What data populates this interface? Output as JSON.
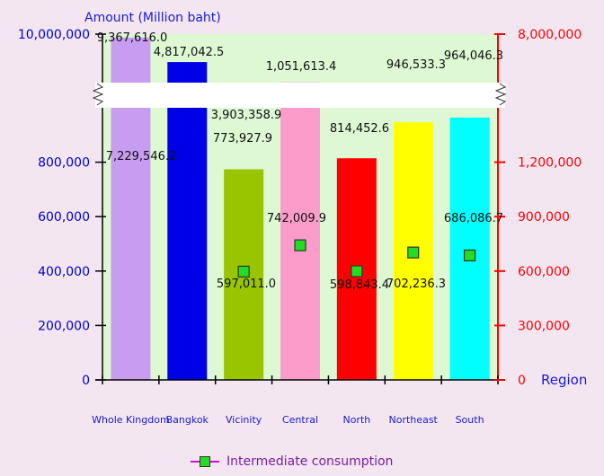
{
  "chart_data": {
    "type": "bar",
    "title": "",
    "left_axis_title": "Amount  (Million baht)",
    "right_axis_title": "Region",
    "categories": [
      "Whole Kingdom",
      "Bangkok",
      "Vicinity",
      "Central",
      "North",
      "Northeast",
      "South"
    ],
    "bar_colors": [
      "#c79cf1",
      "#0000e6",
      "#99c400",
      "#fb9ccb",
      "#ff0000",
      "#ffff00",
      "#00ffff"
    ],
    "bar_values": [
      9367616.0,
      4817042.5,
      773927.9,
      1051613.4,
      814452.6,
      946533.3,
      964046.3
    ],
    "bar_value_labels": [
      "9,367,616.0",
      "4,817,042.5",
      "773,927.9",
      "1,051,613.4",
      "814,452.6",
      "946,533.3",
      "964,046.3"
    ],
    "series": [
      {
        "name": "Intermediate consumption",
        "type": "line",
        "axis": "right",
        "color": "#e000e0",
        "marker_color": "#22dd22",
        "values": [
          7229546.2,
          3903358.9,
          597011.0,
          742009.9,
          598843.4,
          702236.3,
          686086.7
        ],
        "value_labels": [
          "7,229,546.2",
          "3,903,358.9",
          "597,011.0",
          "742,009.9",
          "598,843.4",
          "702,236.3",
          "686,086.7"
        ]
      }
    ],
    "left_axis": {
      "lower_ticks": [
        0,
        200000,
        400000,
        600000,
        800000
      ],
      "lower_tick_labels": [
        "0",
        "200,000",
        "400,000",
        "600,000",
        "800,000"
      ],
      "upper_tick_label": "10,000,000",
      "break": true,
      "color": "#0000cc"
    },
    "right_axis": {
      "lower_ticks": [
        0,
        300000,
        600000,
        900000,
        1200000
      ],
      "lower_tick_labels": [
        "0",
        "300,000",
        "600,000",
        "900,000",
        "1,200,000"
      ],
      "upper_tick_label": "8,000,000",
      "break": true,
      "color": "#ff0000"
    },
    "legend_position": "bottom",
    "background_color": "#ddf8d3",
    "grid": false
  }
}
